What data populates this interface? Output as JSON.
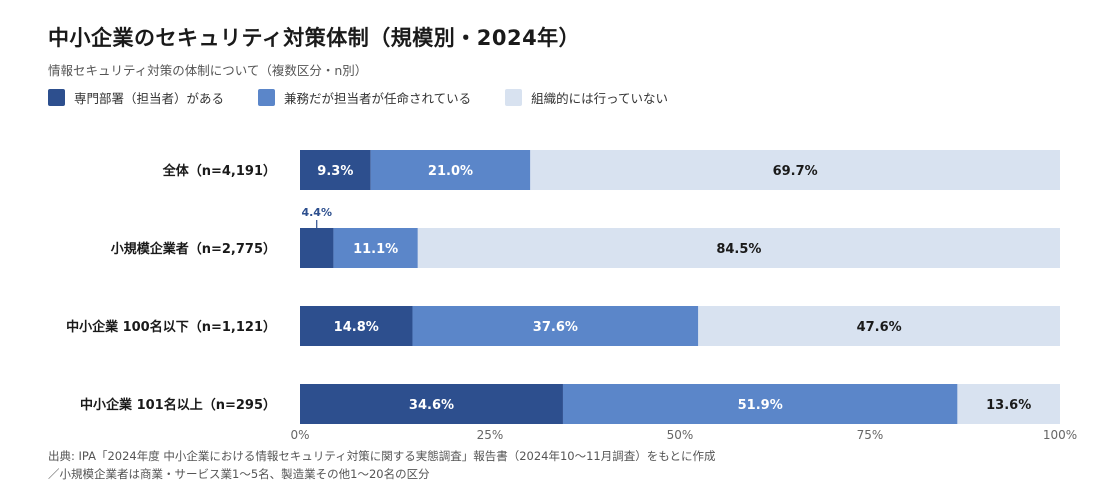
{
  "header": {
    "title": "中小企業のセキュリティ対策体制（規模別・2024年）",
    "subtitle": "情報セキュリティ対策の体制について（複数区分・n別）"
  },
  "colors": {
    "dedicated": "#2d4f8e",
    "concurrent": "#5b86c9",
    "none": "#d8e2f0",
    "label_dark_bg": "#ffffff",
    "label_light_bg": "#1a1a1a",
    "axis": "#666666"
  },
  "chart_data": {
    "type": "bar",
    "orientation": "horizontal",
    "stacked": true,
    "categories": [
      "全体（n=4,191）",
      "小規模企業者（n=2,775）",
      "中小企業 100名以下（n=1,121）",
      "中小企業 101名以上（n=295）"
    ],
    "series": [
      {
        "name": "専門部署（担当者）がある",
        "values": [
          9.3,
          4.4,
          14.8,
          34.6
        ]
      },
      {
        "name": "兼務だが担当者が任命されている",
        "values": [
          21.0,
          11.1,
          37.6,
          51.9
        ]
      },
      {
        "name": "組織的には行っていない",
        "values": [
          69.7,
          84.5,
          47.6,
          13.6
        ]
      }
    ],
    "data_labels": [
      [
        "9.3%",
        "21.0%",
        "69.7%"
      ],
      [
        "4.4%",
        "11.1%",
        "84.5%"
      ],
      [
        "14.8%",
        "37.6%",
        "47.6%"
      ],
      [
        "34.6%",
        "51.9%",
        "13.6%"
      ]
    ],
    "xlim": [
      0,
      100
    ],
    "xticks": [
      0,
      25,
      50,
      75,
      100
    ],
    "xtick_labels": [
      "0%",
      "25%",
      "50%",
      "75%",
      "100%"
    ],
    "legend_position": "top-left",
    "grid": false
  },
  "notes": [
    "出典: IPA「2024年度 中小企業における情報セキュリティ対策に関する実態調査」報告書（2024年10〜11月調査）をもとに作成",
    "／小規模企業者は商業・サービス業1〜5名、製造業その他1〜20名の区分"
  ]
}
